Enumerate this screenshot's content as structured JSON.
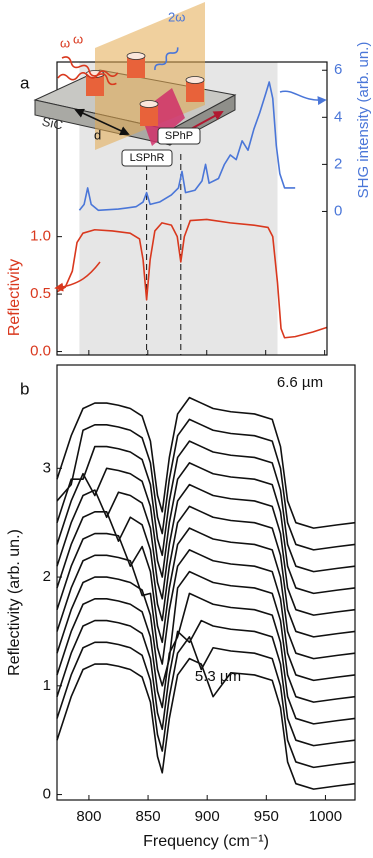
{
  "chart_data": [
    {
      "type": "line",
      "panel_label": "a",
      "ylabel": "Reflectivity",
      "y2label": "SHG intensity (arb. un.)",
      "xlim": [
        773,
        1002
      ],
      "xticks": [
        800,
        850,
        900,
        950,
        1000
      ],
      "ylim": [
        -0.03,
        2.52
      ],
      "yticks": [
        {
          "value": 0,
          "label": "0.0"
        },
        {
          "value": 0.5,
          "label": "0.5"
        },
        {
          "value": 1,
          "label": "1.0"
        }
      ],
      "y2lim": [
        -6.1,
        6.35
      ],
      "y2ticks": [
        0,
        2,
        4,
        6
      ],
      "shaded_region": [
        792,
        960
      ],
      "shade_color": "#e6e6e6",
      "dashed_lines": [
        849,
        878
      ],
      "inset_labels": [
        "ω",
        "ω",
        "2ω",
        "SiC",
        "d",
        "LSPhR",
        "SPhP"
      ],
      "series": [
        {
          "color": "#d9381e",
          "axis": "y",
          "x": [
            773,
            780,
            786,
            790,
            795,
            805,
            820,
            835,
            843,
            846,
            849,
            852,
            856,
            862,
            870,
            875,
            878,
            881,
            886,
            900,
            920,
            940,
            952,
            956,
            960,
            963,
            966,
            975,
            990,
            1002
          ],
          "values": [
            0.52,
            0.56,
            0.7,
            0.95,
            1.03,
            1.06,
            1.05,
            1.03,
            0.98,
            0.8,
            0.45,
            0.8,
            1.05,
            1.12,
            1.1,
            1.0,
            0.78,
            1.0,
            1.14,
            1.15,
            1.12,
            1.1,
            1.08,
            1.0,
            0.6,
            0.2,
            0.12,
            0.13,
            0.17,
            0.21
          ]
        },
        {
          "color": "#4a76d8",
          "axis": "y2",
          "x": [
            792,
            796,
            799,
            802,
            808,
            825,
            840,
            846,
            849,
            852,
            860,
            870,
            876,
            879,
            882,
            890,
            896,
            899,
            902,
            910,
            915,
            920,
            925,
            930,
            935,
            940,
            945,
            950,
            953,
            956,
            959,
            962,
            966,
            975
          ],
          "values": [
            0.05,
            0.3,
            1.0,
            0.3,
            0.05,
            0.1,
            0.2,
            0.4,
            0.8,
            0.3,
            0.4,
            0.7,
            1.0,
            1.7,
            0.8,
            0.9,
            1.3,
            2.0,
            1.2,
            1.4,
            2.0,
            2.4,
            2.2,
            3.0,
            2.6,
            3.5,
            4.2,
            5.0,
            5.5,
            4.8,
            2.8,
            1.6,
            1.0,
            1.0
          ]
        }
      ]
    },
    {
      "type": "line",
      "panel_label": "b",
      "xlabel": "Frequency (cm⁻¹)",
      "ylabel": "Reflectivity (arb. un.)",
      "xlim": [
        773,
        1025
      ],
      "xticks": [
        800,
        850,
        900,
        950,
        1000
      ],
      "ylim": [
        -0.05,
        3.95
      ],
      "yticks": [
        0,
        1,
        2,
        3
      ],
      "annotations": [
        "6.6 µm",
        "5.3 µm"
      ],
      "x": [
        773,
        785,
        795,
        805,
        815,
        825,
        835,
        845,
        852,
        858,
        862,
        868,
        875,
        885,
        895,
        905,
        920,
        940,
        955,
        962,
        968,
        975,
        990,
        1010,
        1025
      ],
      "series": [
        {
          "color": "#111111",
          "values": [
            0.5,
            0.9,
            1.15,
            1.2,
            1.2,
            1.18,
            1.15,
            1.08,
            0.85,
            0.35,
            0.2,
            0.7,
            1.1,
            1.25,
            1.2,
            0.9,
            1.12,
            1.1,
            1.05,
            0.8,
            0.3,
            0.1,
            0.05,
            0.08,
            0.1
          ]
        },
        {
          "color": "#111111",
          "values": [
            0.7,
            1.1,
            1.35,
            1.4,
            1.4,
            1.38,
            1.35,
            1.28,
            1.05,
            0.55,
            0.4,
            0.9,
            1.3,
            1.45,
            1.15,
            1.35,
            1.32,
            1.3,
            1.25,
            1.0,
            0.5,
            0.3,
            0.25,
            0.28,
            0.3
          ]
        },
        {
          "color": "#111111",
          "values": [
            0.9,
            1.3,
            1.55,
            1.6,
            1.6,
            1.58,
            1.55,
            1.48,
            1.25,
            0.75,
            0.6,
            1.1,
            1.5,
            1.4,
            1.6,
            1.55,
            1.52,
            1.5,
            1.45,
            1.2,
            0.7,
            0.5,
            0.45,
            0.48,
            0.5
          ]
        },
        {
          "color": "#111111",
          "values": [
            1.1,
            1.5,
            1.75,
            1.8,
            1.8,
            1.78,
            1.75,
            1.68,
            1.45,
            0.95,
            0.8,
            1.3,
            1.45,
            1.85,
            1.8,
            1.75,
            1.72,
            1.7,
            1.65,
            1.4,
            0.9,
            0.7,
            0.65,
            0.68,
            0.7
          ]
        },
        {
          "color": "#111111",
          "values": [
            1.3,
            1.7,
            1.95,
            2.0,
            2.0,
            1.98,
            1.95,
            1.88,
            1.65,
            1.15,
            1.0,
            1.25,
            1.9,
            2.05,
            2.0,
            1.95,
            1.92,
            1.9,
            1.85,
            1.6,
            1.1,
            0.9,
            0.85,
            0.88,
            0.9
          ]
        },
        {
          "color": "#111111",
          "values": [
            1.5,
            1.9,
            2.15,
            2.2,
            2.2,
            2.18,
            2.15,
            1.83,
            1.85,
            1.35,
            1.2,
            1.7,
            2.1,
            2.25,
            2.2,
            2.15,
            2.12,
            2.1,
            2.05,
            1.8,
            1.3,
            1.1,
            1.05,
            1.08,
            1.1
          ]
        },
        {
          "color": "#111111",
          "values": [
            1.7,
            2.1,
            2.35,
            2.4,
            2.4,
            2.38,
            2.1,
            2.28,
            2.05,
            1.55,
            1.4,
            1.9,
            2.3,
            2.45,
            2.4,
            2.35,
            2.32,
            2.3,
            2.25,
            2.0,
            1.5,
            1.3,
            1.25,
            1.28,
            1.3
          ]
        },
        {
          "color": "#111111",
          "values": [
            1.9,
            2.3,
            2.55,
            2.6,
            2.6,
            2.33,
            2.55,
            2.48,
            2.25,
            1.75,
            1.6,
            2.1,
            2.5,
            2.65,
            2.6,
            2.55,
            2.52,
            2.5,
            2.45,
            2.2,
            1.7,
            1.5,
            1.45,
            1.48,
            1.5
          ]
        },
        {
          "color": "#111111",
          "values": [
            2.1,
            2.5,
            2.75,
            2.8,
            2.55,
            2.78,
            2.75,
            2.68,
            2.45,
            1.95,
            1.8,
            2.3,
            2.7,
            2.85,
            2.8,
            2.75,
            2.72,
            2.7,
            2.65,
            2.4,
            1.9,
            1.7,
            1.65,
            1.68,
            1.7
          ]
        },
        {
          "color": "#111111",
          "values": [
            2.3,
            2.7,
            2.95,
            2.75,
            3.0,
            2.98,
            2.95,
            2.88,
            2.65,
            2.15,
            2.0,
            2.5,
            2.9,
            3.05,
            3.0,
            2.95,
            2.92,
            2.9,
            2.85,
            2.6,
            2.1,
            1.9,
            1.85,
            1.88,
            1.9
          ]
        },
        {
          "color": "#111111",
          "values": [
            2.5,
            2.9,
            2.9,
            3.2,
            3.2,
            3.18,
            3.15,
            3.08,
            2.85,
            2.35,
            2.2,
            2.7,
            3.1,
            3.25,
            3.2,
            3.15,
            3.12,
            3.1,
            3.05,
            2.8,
            2.3,
            2.1,
            2.05,
            2.08,
            2.1
          ]
        },
        {
          "color": "#111111",
          "values": [
            2.7,
            2.85,
            3.35,
            3.4,
            3.4,
            3.38,
            3.35,
            3.28,
            3.05,
            2.55,
            2.4,
            2.9,
            3.3,
            3.45,
            3.4,
            3.35,
            3.32,
            3.3,
            3.25,
            3.0,
            2.5,
            2.3,
            2.25,
            2.28,
            2.3
          ]
        },
        {
          "color": "#111111",
          "values": [
            2.9,
            3.3,
            3.55,
            3.6,
            3.6,
            3.58,
            3.55,
            3.48,
            3.25,
            2.75,
            2.6,
            3.1,
            3.5,
            3.65,
            3.6,
            3.55,
            3.52,
            3.5,
            3.45,
            3.2,
            2.7,
            2.5,
            2.45,
            2.48,
            2.5
          ]
        }
      ]
    }
  ]
}
